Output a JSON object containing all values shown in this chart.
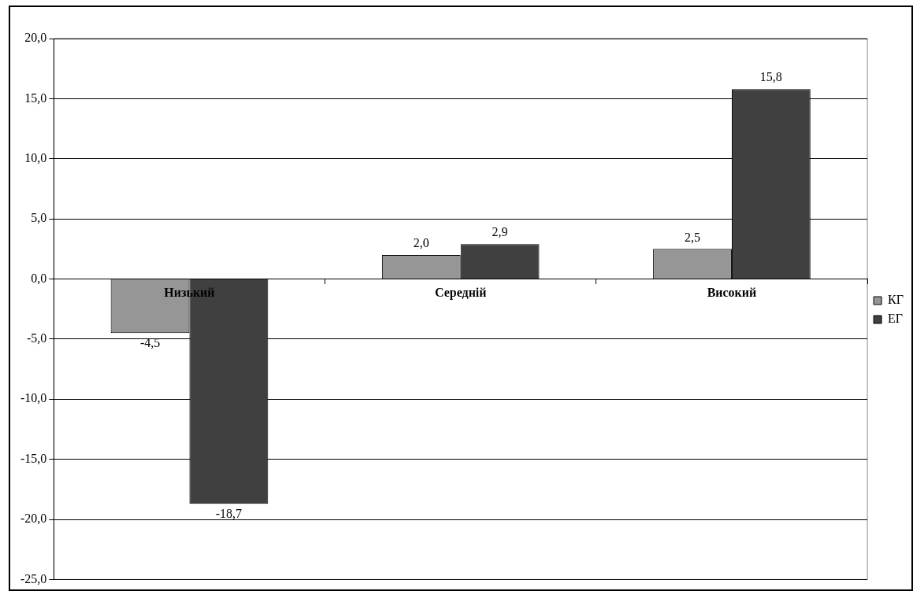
{
  "chart_data": {
    "type": "bar",
    "categories": [
      "Низький",
      "Середній",
      "Високий"
    ],
    "series": [
      {
        "name": "КГ",
        "color": "#969696",
        "values": [
          -4.5,
          2.0,
          2.5
        ],
        "value_labels": [
          "-4,5",
          "2,0",
          "2,5"
        ]
      },
      {
        "name": "ЕГ",
        "color": "#404040",
        "values": [
          -18.7,
          2.9,
          15.8
        ],
        "value_labels": [
          "-18,7",
          "2,9",
          "15,8"
        ]
      }
    ],
    "ylim": [
      -25,
      20
    ],
    "yticks": [
      {
        "value": -25,
        "label": "-25,0"
      },
      {
        "value": -20,
        "label": "-20,0"
      },
      {
        "value": -15,
        "label": "-15,0"
      },
      {
        "value": -10,
        "label": "-10,0"
      },
      {
        "value": -5,
        "label": "-5,0"
      },
      {
        "value": 0,
        "label": "0,0"
      },
      {
        "value": 5,
        "label": "5,0"
      },
      {
        "value": 10,
        "label": "10,0"
      },
      {
        "value": 15,
        "label": "15,0"
      },
      {
        "value": 20,
        "label": "20,0"
      }
    ],
    "grid": "y",
    "legend": "right"
  }
}
